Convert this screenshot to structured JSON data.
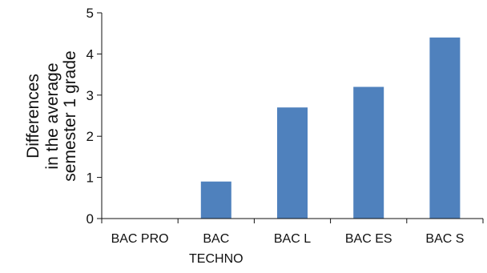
{
  "chart_data": {
    "type": "bar",
    "title": "",
    "ylabel_lines": [
      "Differences",
      "in the average",
      "semester 1 grade"
    ],
    "xlabel": "",
    "categories": [
      [
        "BAC PRO"
      ],
      [
        "BAC",
        "TECHNO"
      ],
      [
        "BAC L"
      ],
      [
        "BAC ES"
      ],
      [
        "BAC S"
      ]
    ],
    "values": [
      0,
      0.9,
      2.7,
      3.2,
      4.4
    ],
    "ylim": [
      0,
      5
    ],
    "yticks": [
      "0",
      "1",
      "2",
      "3",
      "4",
      "5"
    ],
    "grid": false,
    "bar_color": "#4f81bd"
  }
}
